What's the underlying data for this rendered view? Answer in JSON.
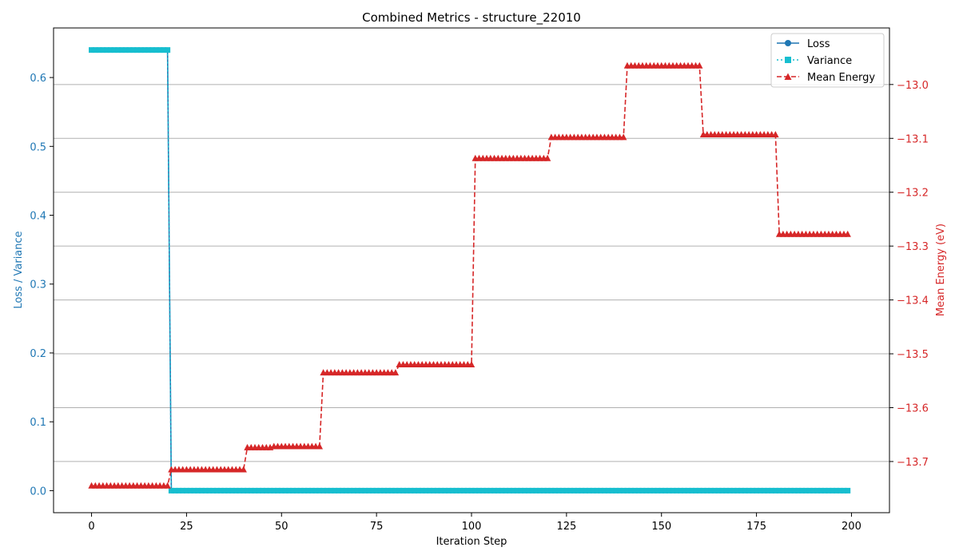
{
  "chart_data": {
    "type": "line",
    "title": "Combined Metrics - structure_22010",
    "xlabel": "Iteration Step",
    "ylabel_left": "Loss / Variance",
    "ylabel_right": "Mean Energy (eV)",
    "xlim": [
      -10,
      210
    ],
    "ylim_left": [
      -0.032,
      0.672
    ],
    "ylim_right": [
      -13.795,
      -12.895
    ],
    "xticks": [
      0,
      25,
      50,
      75,
      100,
      125,
      150,
      175,
      200
    ],
    "yticks_left": [
      0.0,
      0.1,
      0.2,
      0.3,
      0.4,
      0.5,
      0.6
    ],
    "yticks_right": [
      -13.7,
      -13.6,
      -13.5,
      -13.4,
      -13.3,
      -13.2,
      -13.1,
      -13.0
    ],
    "ytick_labels_left": [
      "0.0",
      "0.1",
      "0.2",
      "0.3",
      "0.4",
      "0.5",
      "0.6"
    ],
    "ytick_labels_right": [
      "−13.7",
      "−13.6",
      "−13.5",
      "−13.4",
      "−13.3",
      "−13.2",
      "−13.1",
      "−13.0"
    ],
    "grid": "horizontal (right axis)",
    "legend_position": "top-right",
    "colors": {
      "loss": "#1f77b4",
      "variance": "#17becf",
      "energy": "#d62728"
    },
    "x_range": [
      0,
      199
    ],
    "series": [
      {
        "name": "Loss",
        "axis": "left",
        "style": "solid",
        "marker": "circle",
        "segments": [
          {
            "from": 0,
            "to": 20,
            "value": 0.64
          },
          {
            "from": 21,
            "to": 199,
            "value": 0.0
          }
        ]
      },
      {
        "name": "Variance",
        "axis": "left",
        "style": "dotted",
        "marker": "square",
        "segments": [
          {
            "from": 0,
            "to": 20,
            "value": 0.64
          },
          {
            "from": 21,
            "to": 199,
            "value": 0.0
          }
        ]
      },
      {
        "name": "Mean Energy",
        "axis": "right",
        "style": "dashed",
        "marker": "triangle",
        "segments": [
          {
            "from": 0,
            "to": 20,
            "value": -13.745
          },
          {
            "from": 21,
            "to": 40,
            "value": -13.715
          },
          {
            "from": 41,
            "to": 47,
            "value": -13.674
          },
          {
            "from": 48,
            "to": 60,
            "value": -13.672
          },
          {
            "from": 61,
            "to": 80,
            "value": -13.535
          },
          {
            "from": 81,
            "to": 100,
            "value": -13.52
          },
          {
            "from": 101,
            "to": 120,
            "value": -13.137
          },
          {
            "from": 121,
            "to": 140,
            "value": -13.098
          },
          {
            "from": 141,
            "to": 160,
            "value": -12.965
          },
          {
            "from": 161,
            "to": 180,
            "value": -13.093
          },
          {
            "from": 181,
            "to": 199,
            "value": -13.278
          }
        ]
      }
    ]
  }
}
